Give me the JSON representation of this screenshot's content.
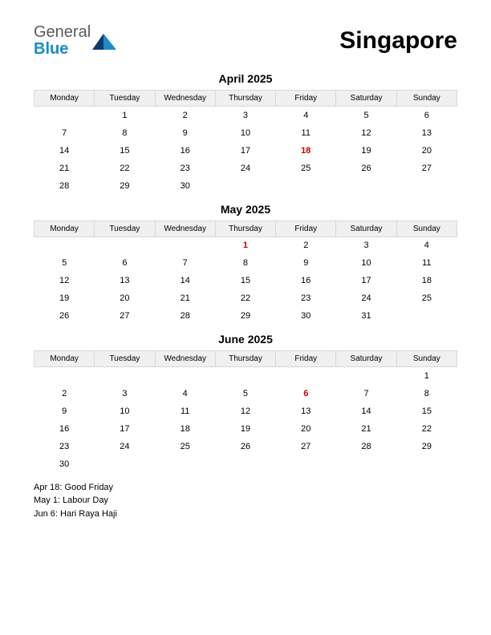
{
  "logo": {
    "general": "General",
    "blue": "Blue",
    "mark_color_dark": "#0b3c6e",
    "mark_color_light": "#1a8cc9"
  },
  "country": "Singapore",
  "colors": {
    "background": "#ffffff",
    "text": "#000000",
    "header_bg": "#f0f0f0",
    "header_border": "#d8d8d8",
    "holiday": "#cc0000",
    "logo_gray": "#5a5a5a",
    "logo_blue": "#1a8cc9"
  },
  "typography": {
    "country_fontsize": 30,
    "month_title_fontsize": 14,
    "dayname_fontsize": 10,
    "cell_fontsize": 11,
    "holiday_list_fontsize": 11
  },
  "day_names": [
    "Monday",
    "Tuesday",
    "Wednesday",
    "Thursday",
    "Friday",
    "Saturday",
    "Sunday"
  ],
  "months": [
    {
      "title": "April 2025",
      "weeks": [
        [
          "",
          "1",
          "2",
          "3",
          "4",
          "5",
          "6"
        ],
        [
          "7",
          "8",
          "9",
          "10",
          "11",
          "12",
          "13"
        ],
        [
          "14",
          "15",
          "16",
          "17",
          "18",
          "19",
          "20"
        ],
        [
          "21",
          "22",
          "23",
          "24",
          "25",
          "26",
          "27"
        ],
        [
          "28",
          "29",
          "30",
          "",
          "",
          "",
          ""
        ]
      ],
      "holidays": [
        "18"
      ]
    },
    {
      "title": "May 2025",
      "weeks": [
        [
          "",
          "",
          "",
          "1",
          "2",
          "3",
          "4"
        ],
        [
          "5",
          "6",
          "7",
          "8",
          "9",
          "10",
          "11"
        ],
        [
          "12",
          "13",
          "14",
          "15",
          "16",
          "17",
          "18"
        ],
        [
          "19",
          "20",
          "21",
          "22",
          "23",
          "24",
          "25"
        ],
        [
          "26",
          "27",
          "28",
          "29",
          "30",
          "31",
          ""
        ]
      ],
      "holidays": [
        "1"
      ]
    },
    {
      "title": "June 2025",
      "weeks": [
        [
          "",
          "",
          "",
          "",
          "",
          "",
          "1"
        ],
        [
          "2",
          "3",
          "4",
          "5",
          "6",
          "7",
          "8"
        ],
        [
          "9",
          "10",
          "11",
          "12",
          "13",
          "14",
          "15"
        ],
        [
          "16",
          "17",
          "18",
          "19",
          "20",
          "21",
          "22"
        ],
        [
          "23",
          "24",
          "25",
          "26",
          "27",
          "28",
          "29"
        ],
        [
          "30",
          "",
          "",
          "",
          "",
          "",
          ""
        ]
      ],
      "holidays": [
        "6"
      ]
    }
  ],
  "holiday_list": [
    "Apr 18: Good Friday",
    "May 1: Labour Day",
    "Jun 6: Hari Raya Haji"
  ]
}
